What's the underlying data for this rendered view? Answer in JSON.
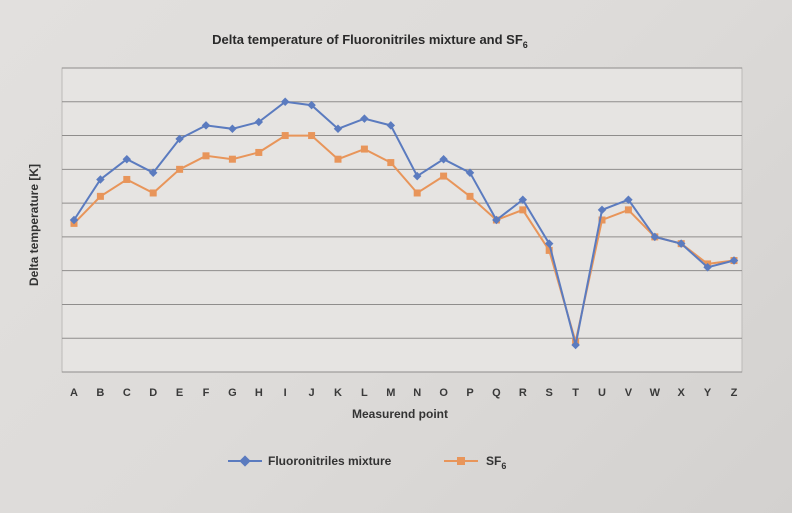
{
  "chart_data": {
    "type": "line",
    "title": "Delta temperature of Fluoronitriles mixture and SF",
    "title_subscript": "6",
    "xlabel": "Measurend point",
    "ylabel": "Delta temperature [K]",
    "ylim": [
      0,
      9
    ],
    "grid": true,
    "legend_position": "bottom",
    "categories": [
      "A",
      "B",
      "C",
      "D",
      "E",
      "F",
      "G",
      "H",
      "I",
      "J",
      "K",
      "L",
      "M",
      "N",
      "O",
      "P",
      "Q",
      "R",
      "S",
      "T",
      "U",
      "V",
      "W",
      "X",
      "Y",
      "Z"
    ],
    "series": [
      {
        "name": "Fluoronitriles mixture",
        "color": "#5b7bbf",
        "marker": "diamond",
        "values": [
          4.5,
          5.7,
          6.3,
          5.9,
          6.9,
          7.3,
          7.2,
          7.4,
          8.0,
          7.9,
          7.2,
          7.5,
          7.3,
          5.8,
          6.3,
          5.9,
          4.5,
          5.1,
          3.8,
          0.8,
          4.8,
          5.1,
          4.0,
          3.8,
          3.1,
          3.3
        ]
      },
      {
        "name": "SF",
        "name_subscript": "6",
        "color": "#e8955a",
        "marker": "square",
        "values": [
          4.4,
          5.2,
          5.7,
          5.3,
          6.0,
          6.4,
          6.3,
          6.5,
          7.0,
          7.0,
          6.3,
          6.6,
          6.2,
          5.3,
          5.8,
          5.2,
          4.5,
          4.8,
          3.6,
          0.9,
          4.5,
          4.8,
          4.0,
          3.8,
          3.2,
          3.3
        ]
      }
    ]
  }
}
